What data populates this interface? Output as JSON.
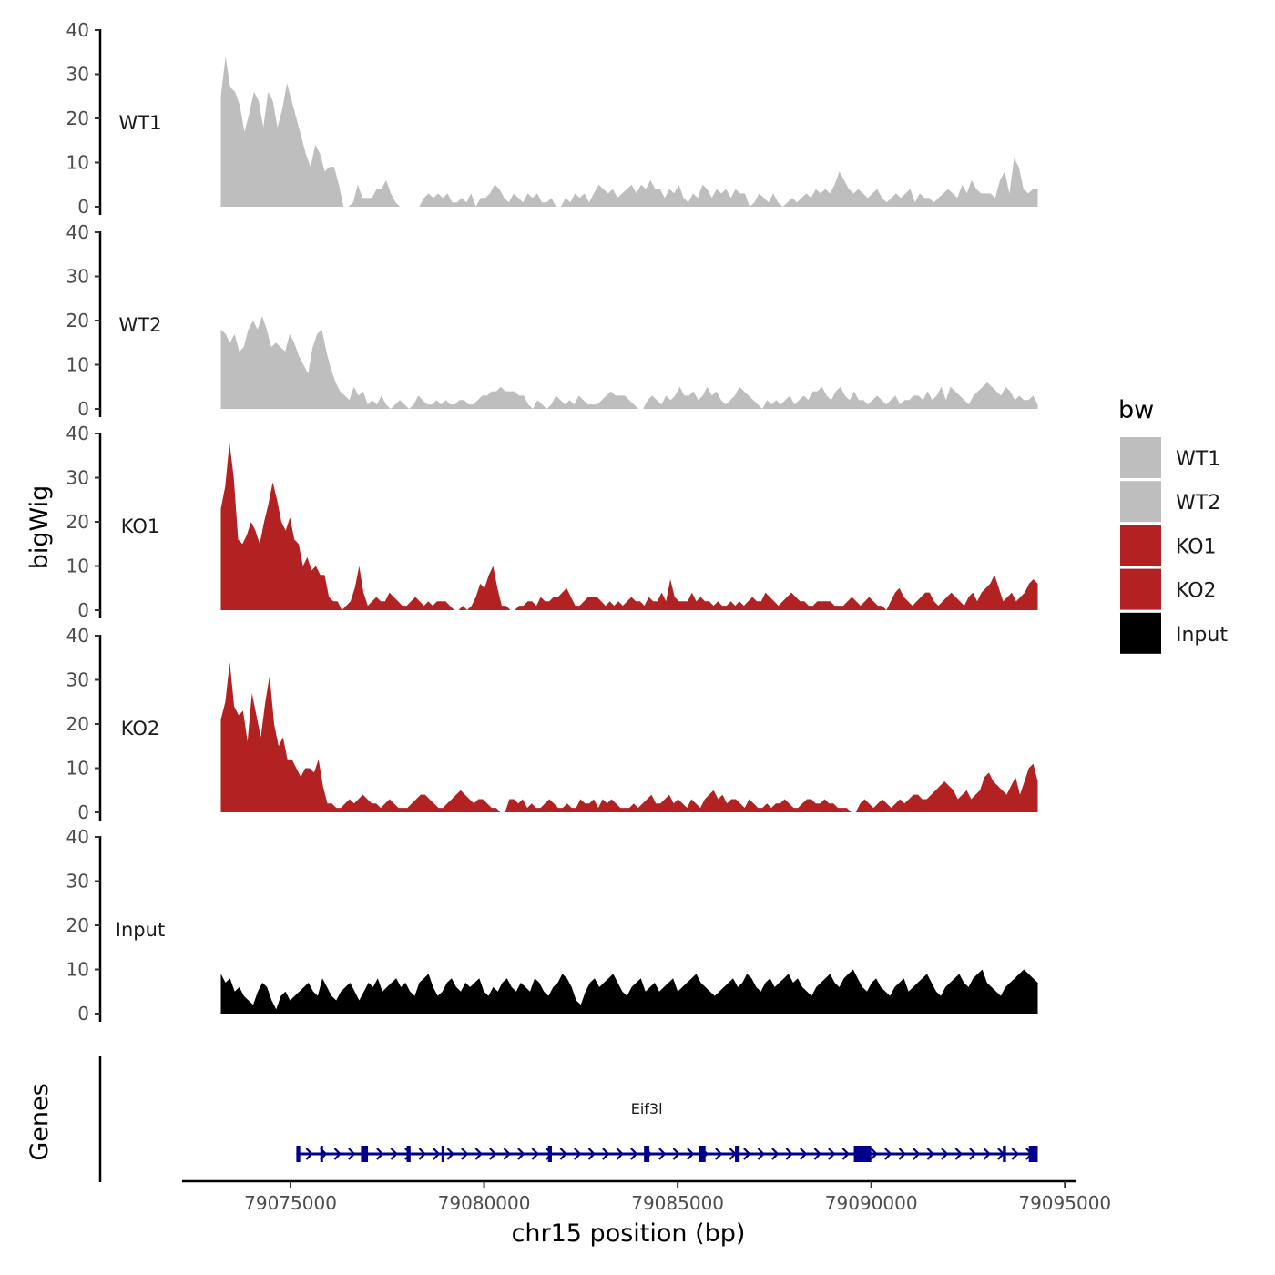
{
  "chart_data": {
    "type": "area",
    "ylabel": "bigWig",
    "xlabel": "chr15 position (bp)",
    "xlim": [
      79072200,
      79095300
    ],
    "data_xrange": [
      79073200,
      79094300
    ],
    "ylim": [
      0,
      40
    ],
    "y_ticks": [
      0,
      10,
      20,
      30,
      40
    ],
    "x_ticks": [
      79075000,
      79080000,
      79085000,
      79090000,
      79095000
    ],
    "x_tick_labels": [
      "79075000",
      "79080000",
      "79085000",
      "79090000",
      "79095000"
    ],
    "legend": {
      "title": "bw",
      "placement": "right",
      "entries": [
        {
          "label": "WT1",
          "color": "#bebebe"
        },
        {
          "label": "WT2",
          "color": "#bebebe"
        },
        {
          "label": "KO1",
          "color": "#b22222"
        },
        {
          "label": "KO2",
          "color": "#b22222"
        },
        {
          "label": "Input",
          "color": "#000000"
        }
      ]
    },
    "series": [
      {
        "name": "WT1",
        "color": "#bebebe",
        "values": [
          25,
          34,
          27,
          26,
          23,
          17,
          21,
          26,
          24,
          18,
          26,
          24,
          18,
          22,
          28,
          24,
          20,
          16,
          12,
          9,
          14,
          12,
          8,
          9,
          9,
          5,
          0,
          0,
          1,
          5,
          2,
          2,
          2,
          4,
          4,
          6,
          3,
          1,
          0,
          0,
          0,
          0,
          0,
          2,
          3,
          2,
          3,
          2,
          3,
          1,
          1,
          2,
          1,
          3,
          0,
          2,
          2,
          3,
          5,
          4,
          2,
          1,
          3,
          2,
          1,
          3,
          2,
          3,
          1,
          1,
          2,
          0,
          0,
          2,
          1,
          3,
          2,
          3,
          1,
          3,
          5,
          4,
          3,
          4,
          2,
          3,
          4,
          5,
          3,
          5,
          4,
          6,
          4,
          4,
          2,
          4,
          3,
          5,
          2,
          1,
          3,
          2,
          5,
          4,
          2,
          4,
          3,
          4,
          2,
          4,
          3,
          3,
          0,
          1,
          3,
          2,
          1,
          3,
          1,
          0,
          1,
          2,
          1,
          2,
          3,
          2,
          4,
          3,
          4,
          3,
          5,
          8,
          6,
          4,
          3,
          4,
          3,
          2,
          3,
          4,
          2,
          1,
          2,
          3,
          2,
          3,
          4,
          1,
          3,
          2,
          2,
          1,
          2,
          3,
          4,
          3,
          2,
          5,
          3,
          6,
          4,
          3,
          3,
          3,
          2,
          6,
          8,
          3,
          11,
          9,
          4,
          3,
          4,
          4
        ]
      },
      {
        "name": "WT2",
        "color": "#bebebe",
        "values": [
          18,
          17,
          15,
          17,
          13,
          14,
          18,
          20,
          18,
          21,
          18,
          14,
          15,
          14,
          13,
          17,
          15,
          12,
          10,
          8,
          14,
          17,
          18,
          13,
          9,
          6,
          4,
          3,
          2,
          5,
          3,
          4,
          1,
          2,
          1,
          3,
          1,
          0,
          1,
          2,
          1,
          0,
          1,
          3,
          2,
          1,
          1,
          2,
          1,
          2,
          1,
          1,
          2,
          2,
          1,
          1,
          2,
          3,
          3,
          4,
          4,
          5,
          4,
          4,
          4,
          3,
          3,
          1,
          0,
          2,
          1,
          0,
          1,
          3,
          2,
          1,
          2,
          1,
          3,
          2,
          1,
          1,
          1,
          2,
          3,
          4,
          3,
          3,
          3,
          2,
          1,
          0,
          0,
          2,
          3,
          2,
          1,
          3,
          2,
          3,
          5,
          3,
          3,
          4,
          2,
          3,
          5,
          3,
          4,
          2,
          1,
          2,
          3,
          5,
          4,
          3,
          2,
          1,
          0,
          2,
          1,
          2,
          1,
          2,
          3,
          1,
          2,
          3,
          2,
          4,
          4,
          5,
          3,
          2,
          4,
          5,
          3,
          2,
          4,
          2,
          2,
          1,
          2,
          3,
          2,
          1,
          2,
          3,
          1,
          2,
          2,
          3,
          3,
          2,
          4,
          2,
          3,
          5,
          2,
          5,
          4,
          3,
          2,
          1,
          3,
          4,
          5,
          6,
          5,
          4,
          3,
          5,
          4,
          2,
          3,
          2,
          2,
          3,
          1
        ]
      },
      {
        "name": "KO1",
        "color": "#b22222",
        "values": [
          23,
          28,
          38,
          30,
          16,
          15,
          17,
          20,
          18,
          15,
          20,
          24,
          29,
          25,
          20,
          18,
          21,
          16,
          15,
          10,
          12,
          9,
          10,
          8,
          8,
          3,
          2,
          2,
          0,
          1,
          2,
          5,
          10,
          4,
          1,
          2,
          3,
          2,
          2,
          4,
          3,
          2,
          1,
          1,
          2,
          3,
          2,
          1,
          2,
          1,
          2,
          2,
          2,
          1,
          0,
          0,
          1,
          0,
          1,
          3,
          6,
          5,
          8,
          10,
          5,
          1,
          1,
          0,
          0,
          1,
          1,
          2,
          2,
          1,
          3,
          2,
          2,
          3,
          3,
          4,
          5,
          3,
          1,
          1,
          2,
          3,
          3,
          3,
          2,
          1,
          2,
          1,
          2,
          1,
          2,
          3,
          2,
          2,
          1,
          3,
          2,
          2,
          4,
          2,
          7,
          3,
          2,
          2,
          2,
          4,
          2,
          3,
          2,
          2,
          1,
          2,
          1,
          1,
          2,
          1,
          2,
          1,
          2,
          3,
          2,
          2,
          4,
          3,
          2,
          1,
          2,
          3,
          4,
          3,
          2,
          2,
          1,
          1,
          2,
          2,
          2,
          2,
          1,
          1,
          1,
          2,
          3,
          2,
          1,
          2,
          3,
          2,
          1,
          1,
          0,
          2,
          4,
          5,
          3,
          2,
          1,
          2,
          3,
          4,
          4,
          2,
          1,
          2,
          3,
          4,
          3,
          2,
          1,
          3,
          4,
          2,
          4,
          5,
          6,
          8,
          5,
          2,
          3,
          4,
          2,
          3,
          4,
          6,
          7,
          6
        ]
      },
      {
        "name": "KO2",
        "color": "#b22222",
        "values": [
          21,
          25,
          34,
          24,
          22,
          23,
          16,
          27,
          22,
          17,
          25,
          31,
          20,
          15,
          17,
          12,
          12,
          10,
          8,
          10,
          10,
          9,
          12,
          6,
          2,
          2,
          1,
          1,
          2,
          3,
          2,
          3,
          4,
          3,
          2,
          2,
          1,
          2,
          3,
          2,
          1,
          1,
          1,
          2,
          3,
          4,
          4,
          3,
          2,
          1,
          1,
          2,
          3,
          4,
          5,
          4,
          3,
          2,
          3,
          3,
          2,
          1,
          1,
          0,
          0,
          3,
          3,
          2,
          3,
          1,
          2,
          1,
          1,
          2,
          3,
          2,
          1,
          1,
          2,
          1,
          1,
          3,
          2,
          2,
          3,
          1,
          3,
          2,
          3,
          2,
          1,
          1,
          1,
          2,
          1,
          2,
          3,
          4,
          2,
          2,
          3,
          4,
          2,
          3,
          2,
          1,
          3,
          2,
          1,
          3,
          4,
          5,
          3,
          4,
          2,
          3,
          3,
          2,
          1,
          3,
          2,
          1,
          1,
          2,
          1,
          2,
          2,
          3,
          2,
          1,
          1,
          2,
          3,
          3,
          2,
          2,
          3,
          2,
          2,
          1,
          1,
          1,
          0,
          0,
          2,
          3,
          2,
          1,
          2,
          3,
          2,
          1,
          2,
          3,
          2,
          3,
          4,
          4,
          3,
          3,
          4,
          5,
          6,
          7,
          6,
          5,
          3,
          4,
          5,
          3,
          4,
          5,
          8,
          9,
          7,
          6,
          5,
          4,
          6,
          8,
          4,
          7,
          10,
          11,
          7
        ]
      },
      {
        "name": "Input",
        "color": "#000000",
        "values": [
          9,
          7,
          8,
          5,
          6,
          4,
          3,
          2,
          5,
          7,
          6,
          3,
          1,
          4,
          5,
          3,
          4,
          5,
          6,
          7,
          5,
          4,
          8,
          6,
          4,
          3,
          5,
          6,
          7,
          5,
          3,
          5,
          7,
          6,
          8,
          5,
          6,
          7,
          8,
          6,
          7,
          5,
          4,
          7,
          8,
          9,
          6,
          4,
          5,
          7,
          8,
          6,
          5,
          7,
          6,
          7,
          8,
          5,
          4,
          6,
          5,
          7,
          8,
          6,
          5,
          7,
          6,
          5,
          8,
          7,
          5,
          4,
          6,
          7,
          9,
          8,
          6,
          3,
          2,
          5,
          7,
          8,
          6,
          7,
          8,
          9,
          7,
          5,
          4,
          6,
          7,
          8,
          5,
          6,
          7,
          5,
          6,
          7,
          8,
          5,
          6,
          7,
          8,
          9,
          7,
          6,
          5,
          4,
          5,
          6,
          7,
          8,
          6,
          7,
          9,
          8,
          6,
          5,
          7,
          8,
          6,
          7,
          8,
          9,
          7,
          8,
          6,
          5,
          4,
          6,
          7,
          8,
          9,
          7,
          6,
          8,
          9,
          10,
          8,
          6,
          5,
          7,
          8,
          6,
          5,
          4,
          6,
          7,
          8,
          5,
          6,
          7,
          8,
          9,
          7,
          5,
          4,
          6,
          7,
          8,
          9,
          7,
          6,
          8,
          9,
          10,
          7,
          6,
          5,
          4,
          6,
          7,
          8,
          9,
          10,
          9,
          8,
          7
        ]
      }
    ],
    "genes": [
      {
        "name": "Eif3l",
        "start": 79075150,
        "end": 79094300,
        "exons": [
          [
            79075150,
            79075250
          ],
          [
            79075770,
            79075830
          ],
          [
            79076820,
            79077000
          ],
          [
            79078000,
            79078100
          ],
          [
            79078900,
            79078960
          ],
          [
            79081650,
            79081750
          ],
          [
            79084130,
            79084270
          ],
          [
            79085540,
            79085720
          ],
          [
            79086480,
            79086600
          ],
          [
            79089550,
            79090000
          ],
          [
            79093400,
            79093480
          ],
          [
            79094070,
            79094300
          ]
        ]
      }
    ],
    "gene_track_label": "Genes"
  }
}
